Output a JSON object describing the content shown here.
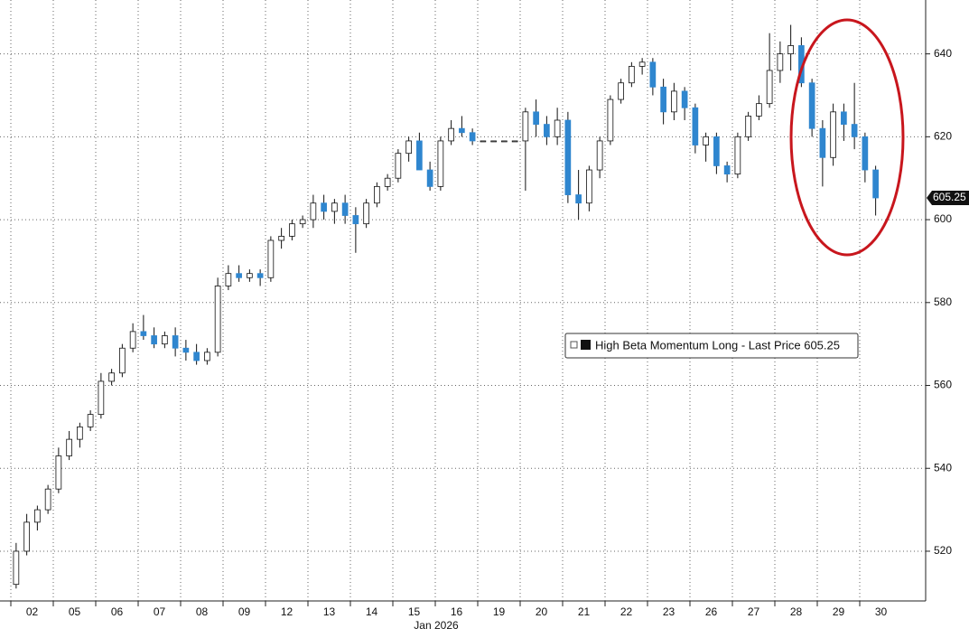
{
  "chart_data": {
    "type": "candlestick",
    "legend_label": "High Beta Momentum Long - Last Price 605.25",
    "month_label": "Jan 2026",
    "up_color": "#ffffff",
    "down_color": "#2f86cf",
    "outline_color": "#111111",
    "grid": true,
    "xlim": [
      -0.5,
      21
    ],
    "ylim": [
      508,
      653
    ],
    "yticks": [
      520,
      540,
      560,
      580,
      600,
      620,
      640
    ],
    "xticks": [
      {
        "value": 0,
        "label": "02"
      },
      {
        "value": 1,
        "label": "05"
      },
      {
        "value": 2,
        "label": "06"
      },
      {
        "value": 3,
        "label": "07"
      },
      {
        "value": 4,
        "label": "08"
      },
      {
        "value": 5,
        "label": "09"
      },
      {
        "value": 6,
        "label": "12"
      },
      {
        "value": 7,
        "label": "13"
      },
      {
        "value": 8,
        "label": "14"
      },
      {
        "value": 9,
        "label": "15"
      },
      {
        "value": 10,
        "label": "16"
      },
      {
        "value": 11,
        "label": "19"
      },
      {
        "value": 12,
        "label": "20"
      },
      {
        "value": 13,
        "label": "21"
      },
      {
        "value": 14,
        "label": "22"
      },
      {
        "value": 15,
        "label": "23"
      },
      {
        "value": 16,
        "label": "26"
      },
      {
        "value": 17,
        "label": "27"
      },
      {
        "value": 18,
        "label": "28"
      },
      {
        "value": 19,
        "label": "29"
      },
      {
        "value": 20,
        "label": "30"
      }
    ],
    "x": [
      -0.375,
      -0.125,
      0.125,
      0.375,
      0.625,
      0.875,
      1.125,
      1.375,
      1.625,
      1.875,
      2.125,
      2.375,
      2.625,
      2.875,
      3.125,
      3.375,
      3.625,
      3.875,
      4.125,
      4.375,
      4.625,
      4.875,
      5.125,
      5.375,
      5.625,
      5.875,
      6.125,
      6.375,
      6.625,
      6.875,
      7.125,
      7.375,
      7.625,
      7.875,
      8.125,
      8.375,
      8.625,
      8.875,
      9.125,
      9.375,
      9.625,
      9.875,
      10.125,
      10.375,
      10.625,
      10.875,
      11.125,
      11.375,
      11.625,
      11.875,
      12.125,
      12.375,
      12.625,
      12.875,
      13.125,
      13.375,
      13.625,
      13.875,
      14.125,
      14.375,
      14.625,
      14.875,
      15.125,
      15.375,
      15.625,
      15.875,
      16.125,
      16.375,
      16.625,
      16.875,
      17.125,
      17.375,
      17.625,
      17.875,
      18.125,
      18.375,
      18.625,
      18.875,
      19.125,
      19.375,
      19.625,
      19.875
    ],
    "open": [
      512,
      520,
      527,
      530,
      535,
      543,
      547,
      550,
      553,
      561,
      563,
      569,
      573,
      572,
      570,
      572,
      569,
      568,
      566,
      568,
      584,
      587,
      586,
      587,
      586,
      595,
      596,
      599,
      600,
      604,
      602,
      604,
      601,
      599,
      604,
      608,
      610,
      616,
      619,
      612,
      608,
      619,
      622,
      621,
      619,
      619,
      619,
      619,
      619,
      626,
      623,
      620,
      624,
      606,
      604,
      612,
      619,
      629,
      633,
      637,
      638,
      632,
      626,
      631,
      627,
      618,
      620,
      613,
      611,
      620,
      625,
      628,
      636,
      640,
      642,
      633,
      622,
      615,
      626,
      623,
      620,
      612
    ],
    "high": [
      522,
      529,
      531,
      536,
      545,
      549,
      551,
      554,
      563,
      564,
      570,
      575,
      577,
      574,
      573,
      574,
      571,
      570,
      569,
      586,
      589,
      589,
      588,
      588,
      596,
      598,
      600,
      601,
      606,
      606,
      605,
      606,
      603,
      605,
      609,
      611,
      617,
      620,
      621,
      614,
      620,
      624,
      625,
      622,
      619,
      619,
      619,
      619,
      627,
      629,
      625,
      627,
      626,
      612,
      613,
      620,
      630,
      634,
      638,
      639,
      639,
      634,
      633,
      632,
      628,
      621,
      621,
      614,
      621,
      626,
      630,
      645,
      643,
      647,
      644,
      634,
      624,
      628,
      628,
      633,
      621,
      613
    ],
    "low": [
      511,
      519,
      525,
      529,
      534,
      542,
      545,
      549,
      552,
      560,
      562,
      568,
      571,
      569,
      569,
      567,
      566,
      565,
      565,
      567,
      583,
      585,
      585,
      584,
      585,
      593,
      595,
      598,
      598,
      600,
      599,
      599,
      592,
      598,
      603,
      607,
      609,
      614,
      612,
      607,
      607,
      618,
      620,
      618,
      619,
      619,
      619,
      619,
      607,
      620,
      618,
      618,
      604,
      600,
      602,
      610,
      618,
      628,
      632,
      635,
      630,
      623,
      624,
      624,
      616,
      614,
      611,
      609,
      610,
      619,
      624,
      627,
      633,
      636,
      632,
      620,
      608,
      613,
      619,
      617,
      609,
      601
    ],
    "close": [
      520,
      527,
      530,
      535,
      543,
      547,
      550,
      553,
      561,
      563,
      569,
      573,
      572,
      570,
      572,
      569,
      568,
      566,
      568,
      584,
      587,
      586,
      587,
      586,
      595,
      596,
      599,
      600,
      604,
      602,
      604,
      601,
      599,
      604,
      608,
      610,
      616,
      619,
      612,
      608,
      619,
      622,
      621,
      619,
      619,
      619,
      619,
      619,
      626,
      623,
      620,
      624,
      606,
      604,
      612,
      619,
      629,
      633,
      637,
      638,
      632,
      626,
      631,
      627,
      618,
      620,
      613,
      611,
      620,
      625,
      628,
      636,
      640,
      642,
      633,
      622,
      615,
      626,
      623,
      620,
      612,
      605.25
    ]
  }
}
